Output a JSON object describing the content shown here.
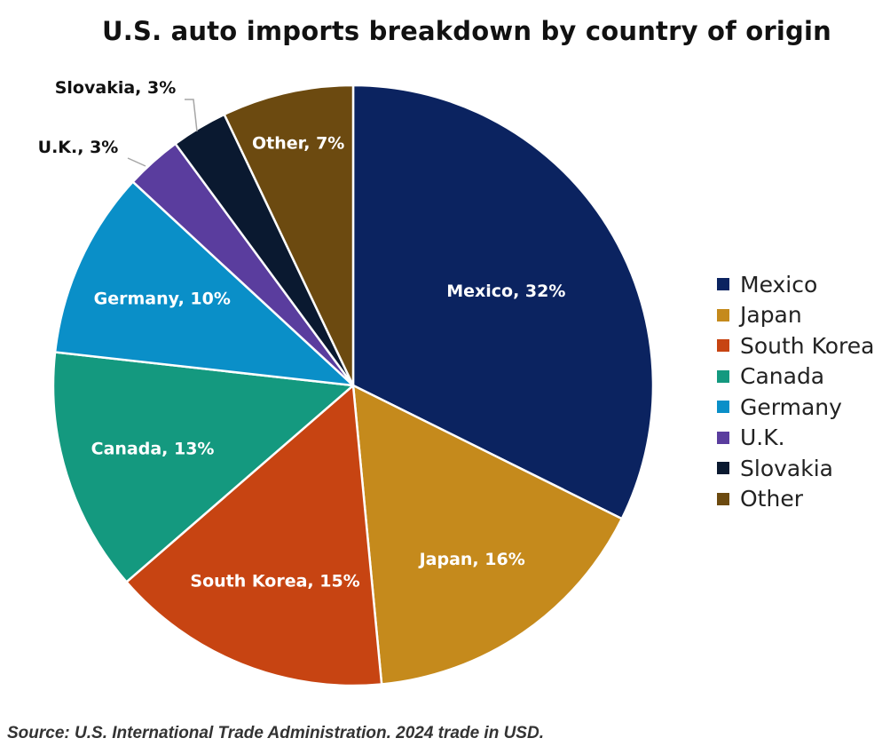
{
  "chart_data": {
    "type": "pie",
    "title": "U.S. auto imports breakdown by country of origin",
    "categories": [
      "Mexico",
      "Japan",
      "South Korea",
      "Canada",
      "Germany",
      "U.K.",
      "Slovakia",
      "Other"
    ],
    "values": [
      32,
      16,
      15,
      13,
      10,
      3,
      3,
      7
    ],
    "unit": "%",
    "start": "12 o'clock",
    "direction": "clockwise",
    "colors": [
      "#0b2360",
      "#c58a1c",
      "#c74412",
      "#14997f",
      "#0a8fc8",
      "#5a3d9e",
      "#0a1930",
      "#6c4a10"
    ],
    "data_labels": [
      "Mexico, 32%",
      "Japan, 16%",
      "South Korea, 15%",
      "Canada, 13%",
      "Germany, 10%",
      "U.K., 3%",
      "Slovakia, 3%",
      "Other, 7%"
    ],
    "legend": {
      "placement": "right",
      "entries": [
        "Mexico",
        "Japan",
        "South Korea",
        "Canada",
        "Germany",
        "U.K.",
        "Slovakia",
        "Other"
      ]
    }
  },
  "source": "Source: U.S. International Trade Administration. 2024 trade in USD."
}
